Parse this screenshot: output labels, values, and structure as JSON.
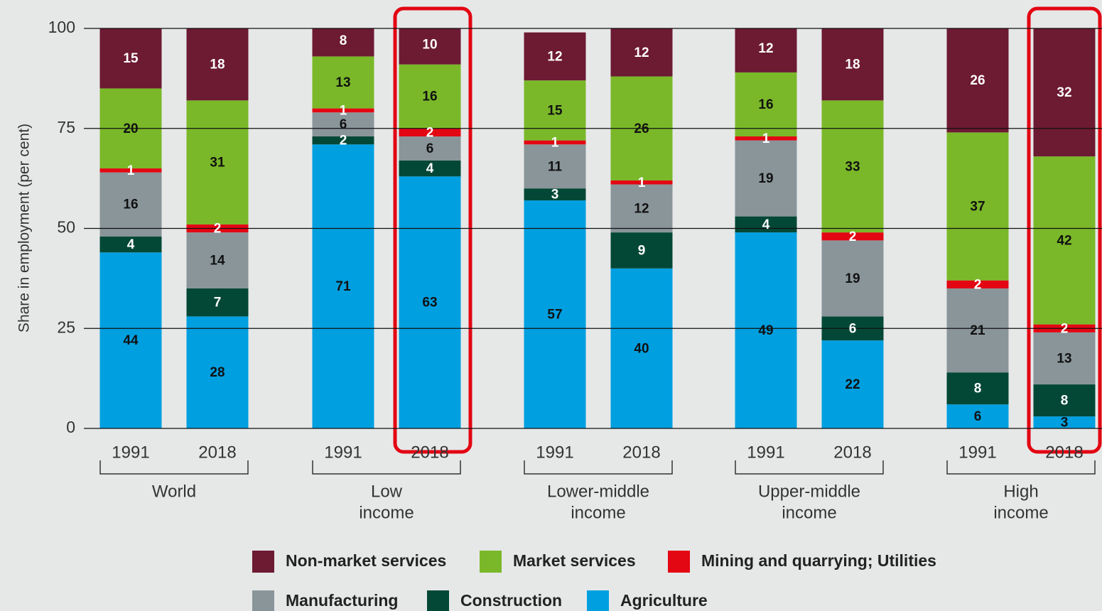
{
  "chart_data": {
    "type": "stacked_bar",
    "ylabel": "Share in employment (per cent)",
    "categories": [
      "1991",
      "2018",
      "1991",
      "2018",
      "1991",
      "2018",
      "1991",
      "2018",
      "1991",
      "2018"
    ],
    "groups": [
      [
        "World"
      ],
      [
        "Low",
        "income"
      ],
      [
        "Lower-middle",
        "income"
      ],
      [
        "Upper-middle",
        "income"
      ],
      [
        "High",
        "income"
      ]
    ],
    "ylim": [
      0,
      100
    ],
    "yticks": [
      0,
      25,
      50,
      75,
      100
    ],
    "grid": true,
    "series": [
      {
        "name": "Agriculture",
        "color": "#009fe0",
        "values": [
          44,
          28,
          71,
          63,
          57,
          40,
          49,
          22,
          6,
          3
        ]
      },
      {
        "name": "Construction",
        "color": "#034836",
        "values": [
          4,
          7,
          2,
          4,
          3,
          9,
          4,
          6,
          8,
          8
        ]
      },
      {
        "name": "Manufacturing",
        "color": "#8a959a",
        "values": [
          16,
          14,
          6,
          6,
          11,
          12,
          19,
          19,
          21,
          13
        ]
      },
      {
        "name": "Mining and quarrying; Utilities",
        "color": "#e30613",
        "values": [
          1,
          2,
          1,
          2,
          1,
          1,
          1,
          2,
          2,
          2
        ]
      },
      {
        "name": "Market services",
        "color": "#7ab829",
        "values": [
          20,
          31,
          13,
          16,
          15,
          26,
          16,
          33,
          37,
          42
        ]
      },
      {
        "name": "Non-market services",
        "color": "#6d1a33",
        "values": [
          15,
          18,
          8,
          10,
          12,
          12,
          12,
          18,
          26,
          32
        ]
      }
    ]
  }
}
